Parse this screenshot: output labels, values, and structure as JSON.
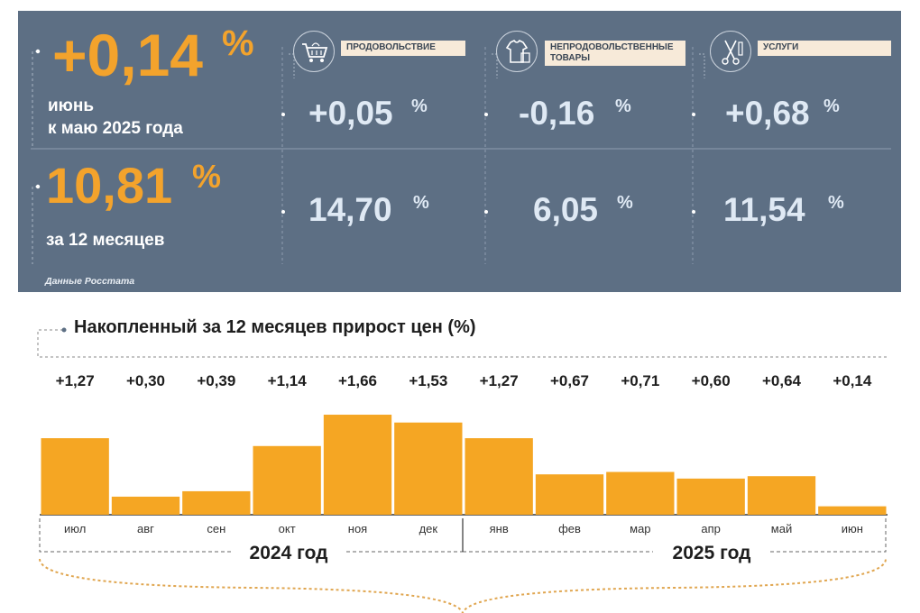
{
  "headline": {
    "monthly_value": "+0,14",
    "monthly_pct": "%",
    "monthly_label_1": "июнь",
    "monthly_label_2": "к маю 2025 года",
    "annual_value": "10,81",
    "annual_pct": "%",
    "annual_label": "за 12 месяцев",
    "source": "Данные Росстата"
  },
  "categories": [
    {
      "label": "ПРОДОВОЛЬСТВИЕ",
      "label_2": "",
      "monthly": "+0,05",
      "annual": "14,70",
      "icon": "shopping-cart-icon"
    },
    {
      "label": "НЕПРОДОВОЛЬСТВЕННЫЕ",
      "label_2": "ТОВАРЫ",
      "monthly": "-0,16",
      "annual": "6,05",
      "icon": "clothes-icon"
    },
    {
      "label": "УСЛУГИ",
      "label_2": "",
      "monthly": "+0,68",
      "annual": "11,54",
      "icon": "scissors-icon"
    }
  ],
  "pct_sign": "%",
  "colors": {
    "panel": "#5d6f84",
    "accent": "#f3a32c",
    "value_text": "#dfe9f4",
    "bar": "#f5a623"
  },
  "chart_title": "Накопленный за 12 месяцев прирост цен (%)",
  "chart_data": {
    "type": "bar",
    "categories": [
      "июл",
      "авг",
      "сен",
      "окт",
      "ноя",
      "дек",
      "янв",
      "фев",
      "мар",
      "апр",
      "май",
      "июн"
    ],
    "values": [
      1.27,
      0.3,
      0.39,
      1.14,
      1.66,
      1.53,
      1.27,
      0.67,
      0.71,
      0.6,
      0.64,
      0.14
    ],
    "value_labels": [
      "+1,27",
      "+0,30",
      "+0,39",
      "+1,14",
      "+1,66",
      "+1,53",
      "+1,27",
      "+0,67",
      "+0,71",
      "+0,60",
      "+0,64",
      "+0,14"
    ],
    "year_labels": [
      "2024 год",
      "2025 год"
    ],
    "year_split_index": 6,
    "ylim": [
      0,
      1.75
    ],
    "grid": false,
    "legend": "none"
  }
}
